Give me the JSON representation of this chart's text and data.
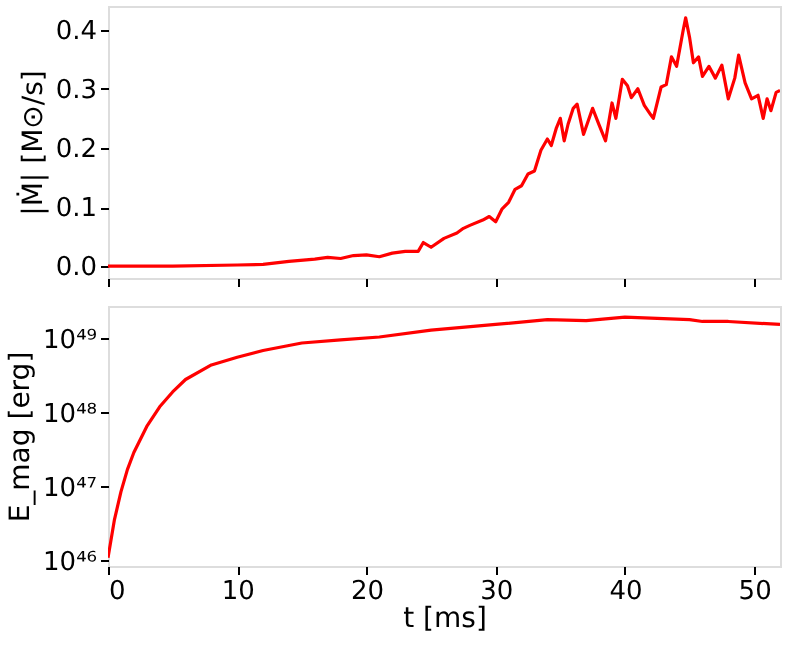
{
  "chart_data": [
    {
      "type": "line",
      "ylabel": "|Ṁ| [M⊙/s]",
      "xlim": [
        0,
        52
      ],
      "xticks": [
        0,
        10,
        20,
        30,
        40,
        50
      ],
      "ylim": [
        -0.02,
        0.44
      ],
      "yticks": [
        {
          "value": 0,
          "label": "0.0"
        },
        0.1,
        0.2,
        0.3,
        0.4
      ],
      "tick_labels": "y",
      "series": [
        {
          "color": "#ff0000",
          "x": [
            0,
            5,
            10,
            12,
            14,
            16,
            17,
            18,
            19,
            20,
            21,
            22,
            23,
            24,
            24.4,
            25,
            26,
            27,
            27.5,
            28,
            29,
            29.5,
            30,
            30.5,
            31,
            31.5,
            32,
            32.5,
            33,
            33.5,
            34,
            34.3,
            34.7,
            35,
            35.3,
            35.6,
            36,
            36.3,
            36.8,
            37.5,
            38,
            38.5,
            39,
            39.3,
            39.8,
            40.2,
            40.5,
            41,
            41.5,
            42,
            42.2,
            42.8,
            43.2,
            43.6,
            44,
            44.5,
            44.7,
            45,
            45.3,
            45.7,
            46,
            46.5,
            47,
            47.5,
            48,
            48.5,
            48.8,
            49.3,
            49.8,
            50.3,
            50.7,
            51,
            51.3,
            51.7,
            52
          ],
          "values": [
            0.0,
            0.0,
            0.002,
            0.003,
            0.008,
            0.012,
            0.015,
            0.013,
            0.018,
            0.019,
            0.016,
            0.022,
            0.025,
            0.025,
            0.04,
            0.032,
            0.047,
            0.056,
            0.064,
            0.069,
            0.078,
            0.084,
            0.075,
            0.097,
            0.108,
            0.13,
            0.136,
            0.156,
            0.161,
            0.196,
            0.215,
            0.204,
            0.234,
            0.25,
            0.212,
            0.24,
            0.267,
            0.274,
            0.223,
            0.267,
            0.239,
            0.212,
            0.276,
            0.25,
            0.316,
            0.305,
            0.285,
            0.3,
            0.272,
            0.256,
            0.25,
            0.303,
            0.307,
            0.354,
            0.338,
            0.398,
            0.42,
            0.387,
            0.344,
            0.354,
            0.321,
            0.338,
            0.318,
            0.34,
            0.283,
            0.318,
            0.357,
            0.31,
            0.283,
            0.289,
            0.25,
            0.283,
            0.263,
            0.294,
            0.297
          ]
        }
      ]
    },
    {
      "type": "line",
      "xlabel": "t [ms]",
      "ylabel": "E_mag [erg]",
      "log": "y",
      "xlim": [
        0,
        52
      ],
      "xticks": [
        0,
        10,
        20,
        30,
        40,
        50
      ],
      "ylim": [
        8.5e+45,
        2.75e+49
      ],
      "yticks": [
        {
          "value": 1e+46,
          "label": "10⁴⁶"
        },
        {
          "value": 1e+47,
          "label": "10⁴⁷"
        },
        {
          "value": 1e+48,
          "label": "10⁴⁸"
        },
        {
          "value": 1e+49,
          "label": "10⁴⁹"
        }
      ],
      "series": [
        {
          "color": "#ff0000",
          "x": [
            0,
            0.5,
            1,
            1.5,
            2,
            3,
            4,
            5,
            6,
            8,
            10,
            12,
            15,
            18,
            21,
            25,
            30,
            34,
            37,
            40,
            45,
            46,
            48,
            52
          ],
          "values": [
            1.1e+46,
            3.6e+46,
            8.5e+46,
            1.7e+47,
            2.9e+47,
            6.5e+47,
            1.2e+48,
            1.9e+48,
            2.8e+48,
            4.4e+48,
            5.6e+48,
            6.9e+48,
            8.7e+48,
            9.6e+48,
            1.05e+49,
            1.3e+49,
            1.55e+49,
            1.8e+49,
            1.75e+49,
            1.95e+49,
            1.8e+49,
            1.7e+49,
            1.7e+49,
            1.55e+49
          ]
        }
      ]
    }
  ]
}
